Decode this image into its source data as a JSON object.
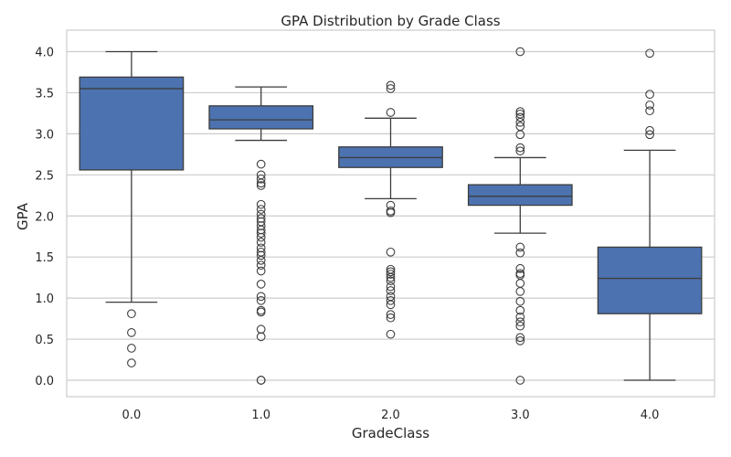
{
  "chart_data": {
    "type": "box",
    "title": "GPA Distribution by Grade Class",
    "xlabel": "GradeClass",
    "ylabel": "GPA",
    "categories": [
      "0.0",
      "1.0",
      "2.0",
      "3.0",
      "4.0"
    ],
    "ylim": [
      -0.2,
      4.2
    ],
    "yticks": [
      0.0,
      0.5,
      1.0,
      1.5,
      2.0,
      2.5,
      3.0,
      3.5,
      4.0
    ],
    "grid": "horizontal",
    "box_color": "#4c72b0",
    "boxes": [
      {
        "category": "0.0",
        "whisker_low": 0.95,
        "q1": 2.56,
        "median": 3.55,
        "q3": 3.69,
        "whisker_high": 4.0,
        "outliers": [
          0.81,
          0.58,
          0.39,
          0.21
        ]
      },
      {
        "category": "1.0",
        "whisker_low": 2.92,
        "q1": 3.06,
        "median": 3.17,
        "q3": 3.34,
        "whisker_high": 3.57,
        "outliers": [
          2.63,
          2.5,
          2.45,
          2.4,
          2.37,
          2.14,
          2.08,
          2.02,
          1.97,
          1.93,
          1.88,
          1.83,
          1.79,
          1.74,
          1.68,
          1.61,
          1.56,
          1.52,
          1.46,
          1.4,
          1.33,
          1.17,
          1.02,
          0.97,
          0.85,
          0.83,
          0.62,
          0.53,
          0.0,
          0.0
        ]
      },
      {
        "category": "2.0",
        "whisker_low": 2.21,
        "q1": 2.59,
        "median": 2.71,
        "q3": 2.84,
        "whisker_high": 3.19,
        "outliers": [
          3.59,
          3.55,
          3.26,
          2.13,
          2.06,
          2.04,
          1.56,
          1.35,
          1.32,
          1.29,
          1.25,
          1.21,
          1.14,
          1.09,
          1.02,
          0.97,
          0.92,
          0.8,
          0.76,
          0.56
        ]
      },
      {
        "category": "3.0",
        "whisker_low": 1.79,
        "q1": 2.13,
        "median": 2.24,
        "q3": 2.38,
        "whisker_high": 2.71,
        "outliers": [
          4.0,
          3.27,
          3.24,
          3.2,
          3.14,
          3.09,
          2.99,
          2.83,
          2.79,
          1.62,
          1.55,
          1.36,
          1.3,
          1.28,
          1.18,
          1.08,
          0.96,
          0.85,
          0.77,
          0.71,
          0.66,
          0.52,
          0.48,
          0.0
        ]
      },
      {
        "category": "4.0",
        "whisker_low": 0.0,
        "q1": 0.81,
        "median": 1.24,
        "q3": 1.62,
        "whisker_high": 2.8,
        "outliers": [
          3.98,
          3.48,
          3.35,
          3.28,
          3.04,
          2.99
        ]
      }
    ]
  }
}
